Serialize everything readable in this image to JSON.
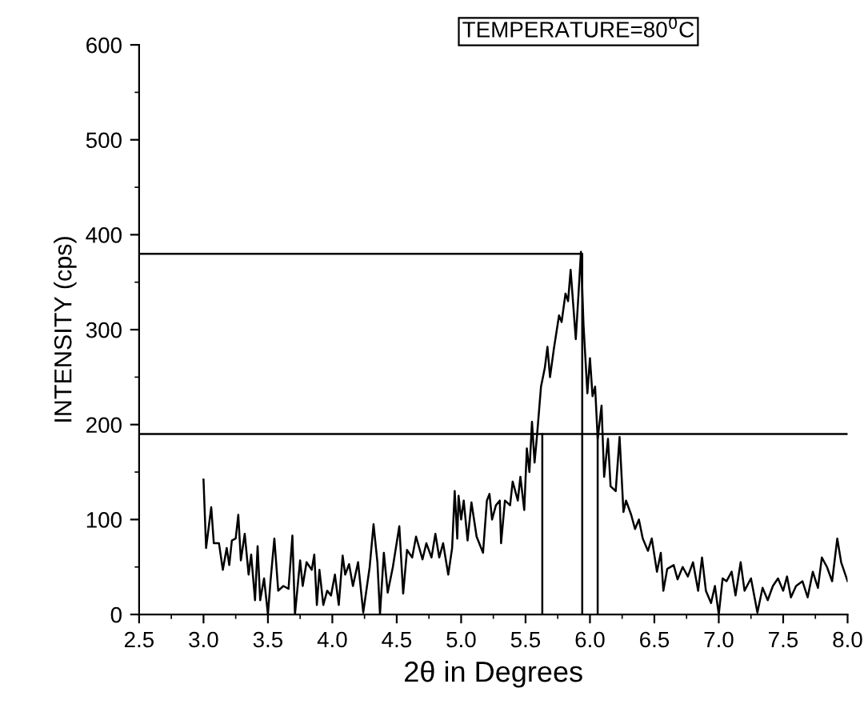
{
  "chart_data": {
    "type": "line",
    "title": "TEMPERATURE=80$^{0}$C",
    "xlabel": "2θ in Degrees",
    "ylabel": "INTENSITY (cps)",
    "xlim": [
      2.5,
      8.0
    ],
    "ylim": [
      0,
      600
    ],
    "xticks": [
      {
        "value": 2.5,
        "label": "2.5"
      },
      {
        "value": 2.75,
        "label": null
      },
      {
        "value": 3.0,
        "label": "3.0"
      },
      {
        "value": 3.25,
        "label": null
      },
      {
        "value": 3.5,
        "label": "3.5"
      },
      {
        "value": 3.75,
        "label": null
      },
      {
        "value": 4.0,
        "label": "4.0"
      },
      {
        "value": 4.25,
        "label": null
      },
      {
        "value": 4.5,
        "label": "4.5"
      },
      {
        "value": 4.75,
        "label": null
      },
      {
        "value": 5.0,
        "label": "5.0"
      },
      {
        "value": 5.25,
        "label": null
      },
      {
        "value": 5.5,
        "label": "5.5"
      },
      {
        "value": 5.75,
        "label": null
      },
      {
        "value": 6.0,
        "label": "6.0"
      },
      {
        "value": 6.25,
        "label": null
      },
      {
        "value": 6.5,
        "label": "6.5"
      },
      {
        "value": 6.75,
        "label": null
      },
      {
        "value": 7.0,
        "label": "7.0"
      },
      {
        "value": 7.25,
        "label": null
      },
      {
        "value": 7.5,
        "label": "7.5"
      },
      {
        "value": 7.75,
        "label": null
      },
      {
        "value": 8.0,
        "label": "8.0"
      }
    ],
    "yticks": [
      0,
      {
        "value": 50,
        "label": null
      },
      100,
      {
        "value": 150,
        "label": null
      },
      200,
      {
        "value": 250,
        "label": null
      },
      300,
      {
        "value": 350,
        "label": null
      },
      400,
      {
        "value": 450,
        "label": null
      },
      500,
      {
        "value": 550,
        "label": null
      },
      600
    ],
    "grid": false,
    "legend": false,
    "marker": "none",
    "line_style": "solid",
    "series": [
      {
        "color": "#000000",
        "x": [
          3.0,
          3.02,
          3.06,
          3.08,
          3.12,
          3.15,
          3.18,
          3.2,
          3.22,
          3.25,
          3.27,
          3.29,
          3.32,
          3.35,
          3.37,
          3.4,
          3.42,
          3.44,
          3.47,
          3.5,
          3.52,
          3.55,
          3.58,
          3.62,
          3.66,
          3.69,
          3.71,
          3.75,
          3.77,
          3.8,
          3.84,
          3.86,
          3.88,
          3.9,
          3.93,
          3.96,
          3.99,
          4.02,
          4.05,
          4.08,
          4.1,
          4.13,
          4.16,
          4.2,
          4.24,
          4.29,
          4.32,
          4.35,
          4.37,
          4.4,
          4.43,
          4.47,
          4.52,
          4.55,
          4.58,
          4.62,
          4.65,
          4.7,
          4.73,
          4.77,
          4.8,
          4.83,
          4.86,
          4.9,
          4.93,
          4.95,
          4.97,
          4.98,
          5.0,
          5.02,
          5.05,
          5.08,
          5.12,
          5.17,
          5.2,
          5.22,
          5.24,
          5.27,
          5.3,
          5.31,
          5.34,
          5.38,
          5.4,
          5.44,
          5.46,
          5.49,
          5.51,
          5.53,
          5.55,
          5.57,
          5.59,
          5.62,
          5.65,
          5.67,
          5.69,
          5.72,
          5.76,
          5.78,
          5.81,
          5.83,
          5.85,
          5.89,
          5.91,
          5.93,
          5.95,
          5.98,
          6.0,
          6.02,
          6.04,
          6.06,
          6.09,
          6.11,
          6.14,
          6.16,
          6.2,
          6.23,
          6.26,
          6.28,
          6.32,
          6.35,
          6.38,
          6.41,
          6.45,
          6.48,
          6.52,
          6.55,
          6.57,
          6.6,
          6.65,
          6.68,
          6.72,
          6.76,
          6.8,
          6.84,
          6.87,
          6.9,
          6.94,
          6.97,
          7.0,
          7.03,
          7.06,
          7.1,
          7.13,
          7.17,
          7.2,
          7.25,
          7.3,
          7.34,
          7.38,
          7.42,
          7.46,
          7.5,
          7.53,
          7.56,
          7.6,
          7.65,
          7.69,
          7.73,
          7.77,
          7.8,
          7.84,
          7.88,
          7.92,
          7.95,
          8.0
        ],
        "values": [
          142,
          70,
          113,
          75,
          75,
          47,
          70,
          52,
          78,
          80,
          105,
          57,
          85,
          42,
          63,
          15,
          72,
          15,
          38,
          0,
          35,
          80,
          25,
          30,
          27,
          83,
          0,
          57,
          30,
          55,
          47,
          63,
          10,
          47,
          10,
          25,
          20,
          42,
          10,
          62,
          42,
          53,
          30,
          55,
          2,
          50,
          95,
          55,
          0,
          65,
          23,
          50,
          93,
          22,
          68,
          60,
          82,
          58,
          75,
          60,
          85,
          60,
          75,
          42,
          70,
          130,
          80,
          125,
          100,
          120,
          78,
          118,
          82,
          65,
          120,
          127,
          100,
          115,
          120,
          75,
          120,
          115,
          140,
          120,
          145,
          110,
          175,
          150,
          203,
          160,
          190,
          240,
          260,
          282,
          250,
          280,
          315,
          308,
          338,
          330,
          363,
          290,
          335,
          382,
          305,
          233,
          270,
          230,
          240,
          185,
          220,
          145,
          185,
          135,
          130,
          187,
          108,
          120,
          105,
          90,
          100,
          80,
          67,
          80,
          45,
          65,
          25,
          48,
          52,
          37,
          50,
          40,
          55,
          25,
          60,
          25,
          12,
          30,
          0,
          38,
          35,
          45,
          20,
          55,
          25,
          38,
          2,
          28,
          15,
          30,
          38,
          25,
          40,
          18,
          30,
          35,
          18,
          45,
          28,
          60,
          50,
          35,
          80,
          55,
          35
        ]
      },
      {
        "color": "#000000",
        "x": [
          2.5,
          5.94,
          5.94
        ],
        "values": [
          380,
          380,
          0
        ]
      },
      {
        "color": "#000000",
        "x": [
          2.5,
          8.0
        ],
        "values": [
          190,
          190
        ]
      },
      {
        "color": "#000000",
        "x": [
          5.63,
          5.63
        ],
        "values": [
          190,
          0
        ]
      },
      {
        "color": "#000000",
        "x": [
          6.06,
          6.06
        ],
        "values": [
          190,
          0
        ]
      }
    ]
  }
}
